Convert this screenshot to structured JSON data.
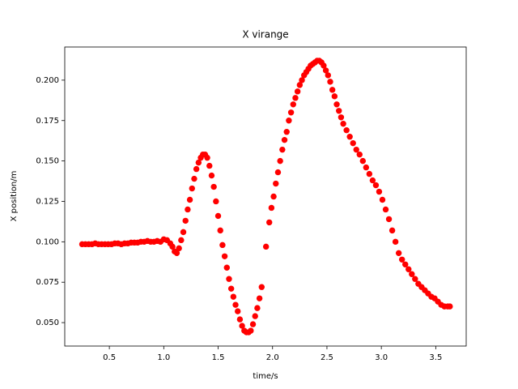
{
  "chart_data": {
    "type": "scatter",
    "title": "X virange",
    "x_label": "time/s",
    "y_label": "X position/m",
    "series": [
      {
        "color": "#ff0000",
        "x": [
          0.25,
          0.28,
          0.31,
          0.34,
          0.37,
          0.4,
          0.43,
          0.46,
          0.49,
          0.52,
          0.55,
          0.58,
          0.61,
          0.64,
          0.67,
          0.7,
          0.73,
          0.76,
          0.79,
          0.82,
          0.85,
          0.88,
          0.91,
          0.94,
          0.97,
          1.0,
          1.03,
          1.06,
          1.08,
          1.1,
          1.12,
          1.14,
          1.16,
          1.18,
          1.2,
          1.22,
          1.24,
          1.26,
          1.28,
          1.3,
          1.32,
          1.34,
          1.36,
          1.38,
          1.4,
          1.42,
          1.44,
          1.46,
          1.48,
          1.5,
          1.52,
          1.54,
          1.56,
          1.58,
          1.6,
          1.62,
          1.64,
          1.66,
          1.68,
          1.7,
          1.72,
          1.74,
          1.76,
          1.78,
          1.8,
          1.82,
          1.84,
          1.86,
          1.88,
          1.9,
          1.94,
          1.97,
          1.99,
          2.01,
          2.03,
          2.05,
          2.07,
          2.09,
          2.11,
          2.13,
          2.15,
          2.17,
          2.19,
          2.21,
          2.23,
          2.25,
          2.27,
          2.29,
          2.31,
          2.33,
          2.35,
          2.37,
          2.39,
          2.41,
          2.43,
          2.45,
          2.47,
          2.49,
          2.51,
          2.53,
          2.55,
          2.57,
          2.59,
          2.61,
          2.63,
          2.65,
          2.68,
          2.71,
          2.74,
          2.77,
          2.8,
          2.83,
          2.86,
          2.89,
          2.92,
          2.95,
          2.98,
          3.01,
          3.04,
          3.07,
          3.1,
          3.13,
          3.16,
          3.19,
          3.22,
          3.25,
          3.28,
          3.31,
          3.34,
          3.37,
          3.4,
          3.43,
          3.46,
          3.49,
          3.52,
          3.55,
          3.58,
          3.61,
          3.63
        ],
        "values": [
          0.0985,
          0.0985,
          0.0985,
          0.0985,
          0.099,
          0.0985,
          0.0985,
          0.0985,
          0.0985,
          0.0985,
          0.099,
          0.099,
          0.0985,
          0.099,
          0.099,
          0.0995,
          0.0995,
          0.0995,
          0.1,
          0.1,
          0.1005,
          0.1,
          0.1,
          0.1005,
          0.1,
          0.1015,
          0.101,
          0.099,
          0.097,
          0.094,
          0.093,
          0.096,
          0.101,
          0.106,
          0.113,
          0.12,
          0.126,
          0.133,
          0.139,
          0.145,
          0.149,
          0.152,
          0.154,
          0.154,
          0.152,
          0.147,
          0.141,
          0.134,
          0.125,
          0.116,
          0.107,
          0.098,
          0.091,
          0.084,
          0.077,
          0.071,
          0.066,
          0.061,
          0.057,
          0.052,
          0.048,
          0.045,
          0.044,
          0.044,
          0.045,
          0.049,
          0.054,
          0.059,
          0.065,
          0.072,
          0.097,
          0.112,
          0.121,
          0.128,
          0.136,
          0.143,
          0.15,
          0.157,
          0.163,
          0.168,
          0.175,
          0.18,
          0.185,
          0.189,
          0.193,
          0.197,
          0.2,
          0.203,
          0.205,
          0.207,
          0.209,
          0.21,
          0.211,
          0.212,
          0.212,
          0.211,
          0.209,
          0.206,
          0.203,
          0.199,
          0.194,
          0.19,
          0.185,
          0.181,
          0.177,
          0.173,
          0.169,
          0.165,
          0.161,
          0.157,
          0.154,
          0.15,
          0.146,
          0.142,
          0.138,
          0.135,
          0.131,
          0.126,
          0.12,
          0.114,
          0.107,
          0.1,
          0.093,
          0.089,
          0.086,
          0.083,
          0.08,
          0.077,
          0.074,
          0.072,
          0.07,
          0.068,
          0.066,
          0.065,
          0.063,
          0.061,
          0.06,
          0.06,
          0.06
        ]
      }
    ],
    "xlim": [
      0.09,
      3.78
    ],
    "ylim": [
      0.0355,
      0.2205
    ],
    "xticks": [
      0.5,
      {
        "value": 1.0,
        "label": "1.0"
      },
      1.5,
      {
        "value": 2.0,
        "label": "2.0"
      },
      2.5,
      {
        "value": 3.0,
        "label": "3.0"
      },
      3.5
    ],
    "yticks": [
      {
        "value": 0.05,
        "label": "0.050"
      },
      0.075,
      {
        "value": 0.1,
        "label": "0.100"
      },
      0.125,
      {
        "value": 0.15,
        "label": "0.150"
      },
      0.175,
      {
        "value": 0.2,
        "label": "0.200"
      }
    ]
  }
}
